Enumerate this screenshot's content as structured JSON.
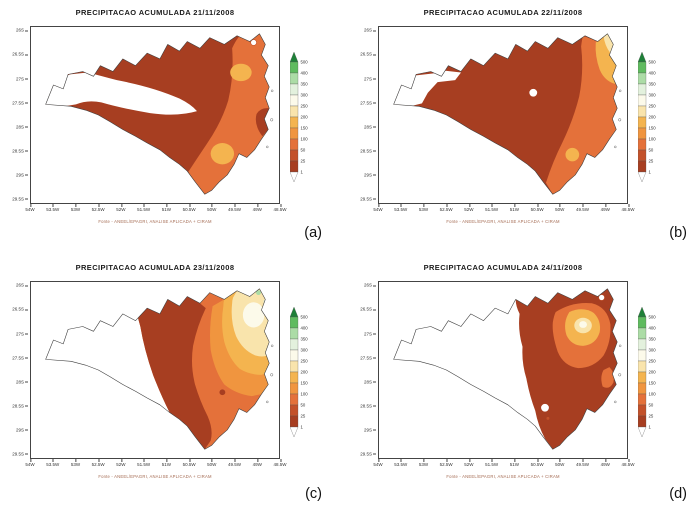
{
  "figure": {
    "background": "#ffffff"
  },
  "panels": [
    {
      "letter": "(a)",
      "title": "PRECIPITACAO ACUMULADA 21/11/2008"
    },
    {
      "letter": "(b)",
      "title": "PRECIPITACAO ACUMULADA 22/11/2008"
    },
    {
      "letter": "(c)",
      "title": "PRECIPITACAO ACUMULADA 23/11/2008"
    },
    {
      "letter": "(d)",
      "title": "PRECIPITACAO ACUMULADA 24/11/2008"
    }
  ],
  "source_caption": "Fonte - ANEEL/EPAGRI, ANALISE APLICADA + CIRAM",
  "axes": {
    "y_ticks": [
      "26S",
      "26.5S",
      "27S",
      "27.5S",
      "28S",
      "28.5S",
      "29S",
      "29.5S"
    ],
    "x_ticks": [
      "54W",
      "53.5W",
      "53W",
      "52.5W",
      "52W",
      "51.5W",
      "51W",
      "50.5W",
      "50W",
      "49.5W",
      "49W",
      "48.5W"
    ]
  },
  "colorbar": {
    "labels": [
      "500",
      "400",
      "350",
      "300",
      "250",
      "200",
      "150",
      "100",
      "50",
      "25",
      "1"
    ],
    "segment_colors_top_to_bottom": [
      "#5FBB5F",
      "#ACDCA6",
      "#E3F1DD",
      "#FCFAEA",
      "#F9E4AC",
      "#F4B44F",
      "#F0953F",
      "#E4713A",
      "#C3512A",
      "#A73E21"
    ],
    "arrow_top_color": "#1E8038",
    "arrow_bottom_color": "#FFFFFF"
  },
  "palette": {
    "red1": "#A73E21",
    "red2": "#C3512A",
    "orange1": "#E4713A",
    "orange2": "#F0953F",
    "gold": "#F4B44F",
    "cream": "#F9E4AC",
    "white1": "#FCFAEA",
    "green1": "#E3F1DD",
    "green2": "#ACDCA6",
    "green3": "#5FBB5F",
    "green4": "#1E8038",
    "outline": "#3F3F3F"
  }
}
